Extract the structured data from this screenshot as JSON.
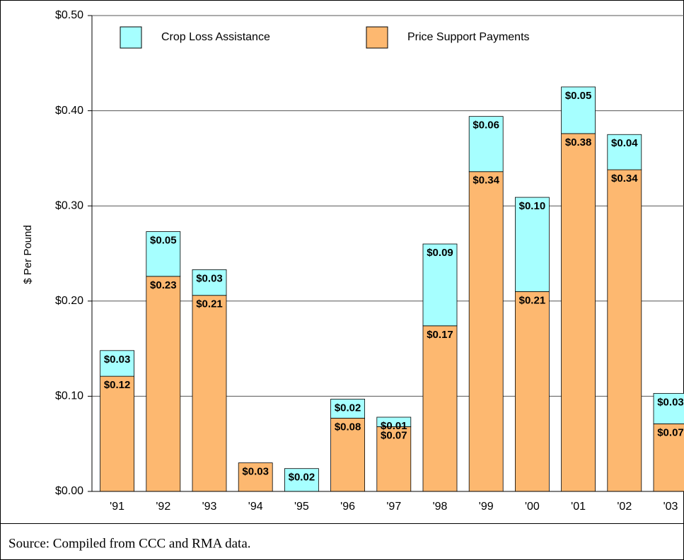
{
  "chart_data": {
    "type": "stacked_bar",
    "y_axis_label": "$ Per Pound",
    "source": "Source:  Compiled from CCC and RMA  data.",
    "categories": [
      "'91",
      "'92",
      "'93",
      "'94",
      "'95",
      "'96",
      "'97",
      "'98",
      "'99",
      "'00",
      "'01",
      "'02",
      "'03"
    ],
    "series": [
      {
        "name": "Price Support Payments",
        "color": "#fdb870",
        "values": [
          0.121,
          0.226,
          0.206,
          0.03,
          0,
          0.077,
          0.068,
          0.174,
          0.336,
          0.21,
          0.376,
          0.338,
          0.071
        ],
        "value_labels": [
          "$0.12",
          "$0.23",
          "$0.21",
          "$0.03",
          null,
          "$0.08",
          "$0.07",
          "$0.17",
          "$0.34",
          "$0.21",
          "$0.38",
          "$0.34",
          "$0.07"
        ]
      },
      {
        "name": "Crop Loss Assistance",
        "color": "#a6ffff",
        "values": [
          0.027,
          0.047,
          0.027,
          0,
          0.024,
          0.02,
          0.01,
          0.086,
          0.058,
          0.099,
          0.049,
          0.037,
          0.032
        ],
        "value_labels": [
          "$0.03",
          "$0.05",
          "$0.03",
          null,
          "$0.02",
          "$0.02",
          "$0.01",
          "$0.09",
          "$0.06",
          "$0.10",
          "$0.05",
          "$0.04",
          "$0.03"
        ]
      }
    ],
    "ylim": [
      0,
      0.5
    ],
    "yticks": [
      {
        "value": 0,
        "label": "$0.00"
      },
      {
        "value": 0.1,
        "label": "$0.10"
      },
      {
        "value": 0.2,
        "label": "$0.20"
      },
      {
        "value": 0.3,
        "label": "$0.30"
      },
      {
        "value": 0.4,
        "label": "$0.40"
      },
      {
        "value": 0.5,
        "label": "$0.50"
      }
    ],
    "grid": true
  }
}
